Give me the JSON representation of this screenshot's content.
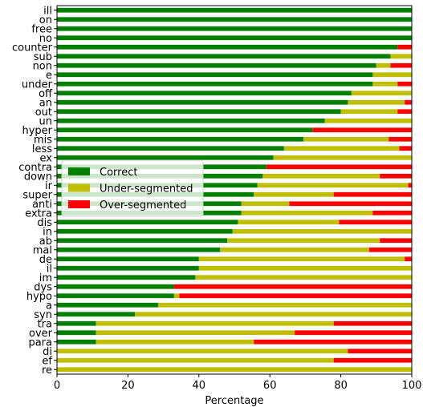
{
  "chart_data": {
    "type": "bar",
    "orientation": "horizontal",
    "stacked": true,
    "xlabel": "Percentage",
    "ylabel": "",
    "xlim": [
      0,
      100
    ],
    "xticks": [
      0,
      20,
      40,
      60,
      80,
      100
    ],
    "grid": false,
    "legend": {
      "placement": "center-left"
    },
    "categories": [
      "ill",
      "on",
      "free",
      "no",
      "counter",
      "sub",
      "non",
      "e",
      "under",
      "off",
      "an",
      "out",
      "un",
      "hyper",
      "mis",
      "less",
      "ex",
      "contra",
      "down",
      "ir",
      "super",
      "anti",
      "extra",
      "dis",
      "in",
      "ab",
      "mal",
      "de",
      "il",
      "im",
      "dys",
      "hypo",
      "a",
      "syn",
      "tra",
      "over",
      "para",
      "di",
      "ef",
      "re"
    ],
    "series": [
      {
        "name": "Correct",
        "color": "#008000",
        "values": [
          100,
          100,
          100,
          100,
          96,
          94,
          90,
          89,
          89,
          83,
          82,
          80,
          75.5,
          72,
          69.5,
          64,
          61,
          59,
          58,
          56.5,
          55.5,
          52,
          52,
          51,
          49.5,
          48,
          46,
          40,
          40,
          39,
          33,
          33,
          28.5,
          22,
          11,
          11,
          11,
          0,
          0,
          0
        ]
      },
      {
        "name": "Under-segmented",
        "color": "#bfbf00",
        "values": [
          0,
          0,
          0,
          0,
          0,
          6,
          4,
          11,
          7,
          17,
          16,
          16,
          24.5,
          0,
          24,
          32.5,
          39,
          0,
          33,
          42.5,
          22.5,
          13.5,
          37,
          28.5,
          50.5,
          43,
          42,
          58,
          60,
          61,
          0,
          1.5,
          71.5,
          78,
          67,
          56,
          44.5,
          82,
          78,
          100
        ]
      },
      {
        "name": "Over-segmented",
        "color": "#ff0000",
        "values": [
          0,
          0,
          0,
          0,
          4,
          0,
          6,
          0,
          4,
          0,
          2,
          4,
          0,
          28,
          6.5,
          3.5,
          0,
          41,
          9,
          1,
          22,
          34.5,
          11,
          20.5,
          0,
          9,
          12,
          2,
          0,
          0,
          67,
          65.5,
          0,
          0,
          22,
          33,
          44.5,
          18,
          22,
          0
        ]
      }
    ]
  }
}
